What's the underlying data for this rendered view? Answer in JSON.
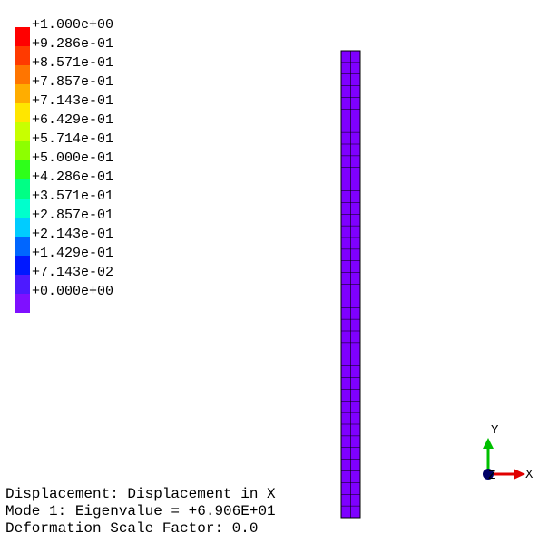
{
  "legend": {
    "labels": [
      "+1.000e+00",
      "+9.286e-01",
      "+8.571e-01",
      "+7.857e-01",
      "+7.143e-01",
      "+6.429e-01",
      "+5.714e-01",
      "+5.000e-01",
      "+4.286e-01",
      "+3.571e-01",
      "+2.857e-01",
      "+2.143e-01",
      "+1.429e-01",
      "+7.143e-02",
      "+0.000e+00"
    ],
    "colors": [
      "#ff0000",
      "#ff3a00",
      "#ff7500",
      "#ffad00",
      "#ffe600",
      "#c8ff00",
      "#8dff00",
      "#2eff1a",
      "#00ff85",
      "#00ffcc",
      "#00ccff",
      "#0066ff",
      "#0018ff",
      "#4d1aff",
      "#7f10ff"
    ]
  },
  "mesh": {
    "fill_color": "#7f00ff",
    "line_color": "#000000",
    "columns": 2,
    "rows": 40
  },
  "info": {
    "line1": "Displacement: Displacement in X",
    "line2": "Mode 1: Eigenvalue = +6.906E+01",
    "line3": "Deformation Scale Factor: 0.0"
  },
  "triad": {
    "x_label": "X",
    "y_label": "Y",
    "z_label": "Z",
    "x_color": "#e00000",
    "y_color": "#00c000",
    "z_color": "#000066"
  }
}
